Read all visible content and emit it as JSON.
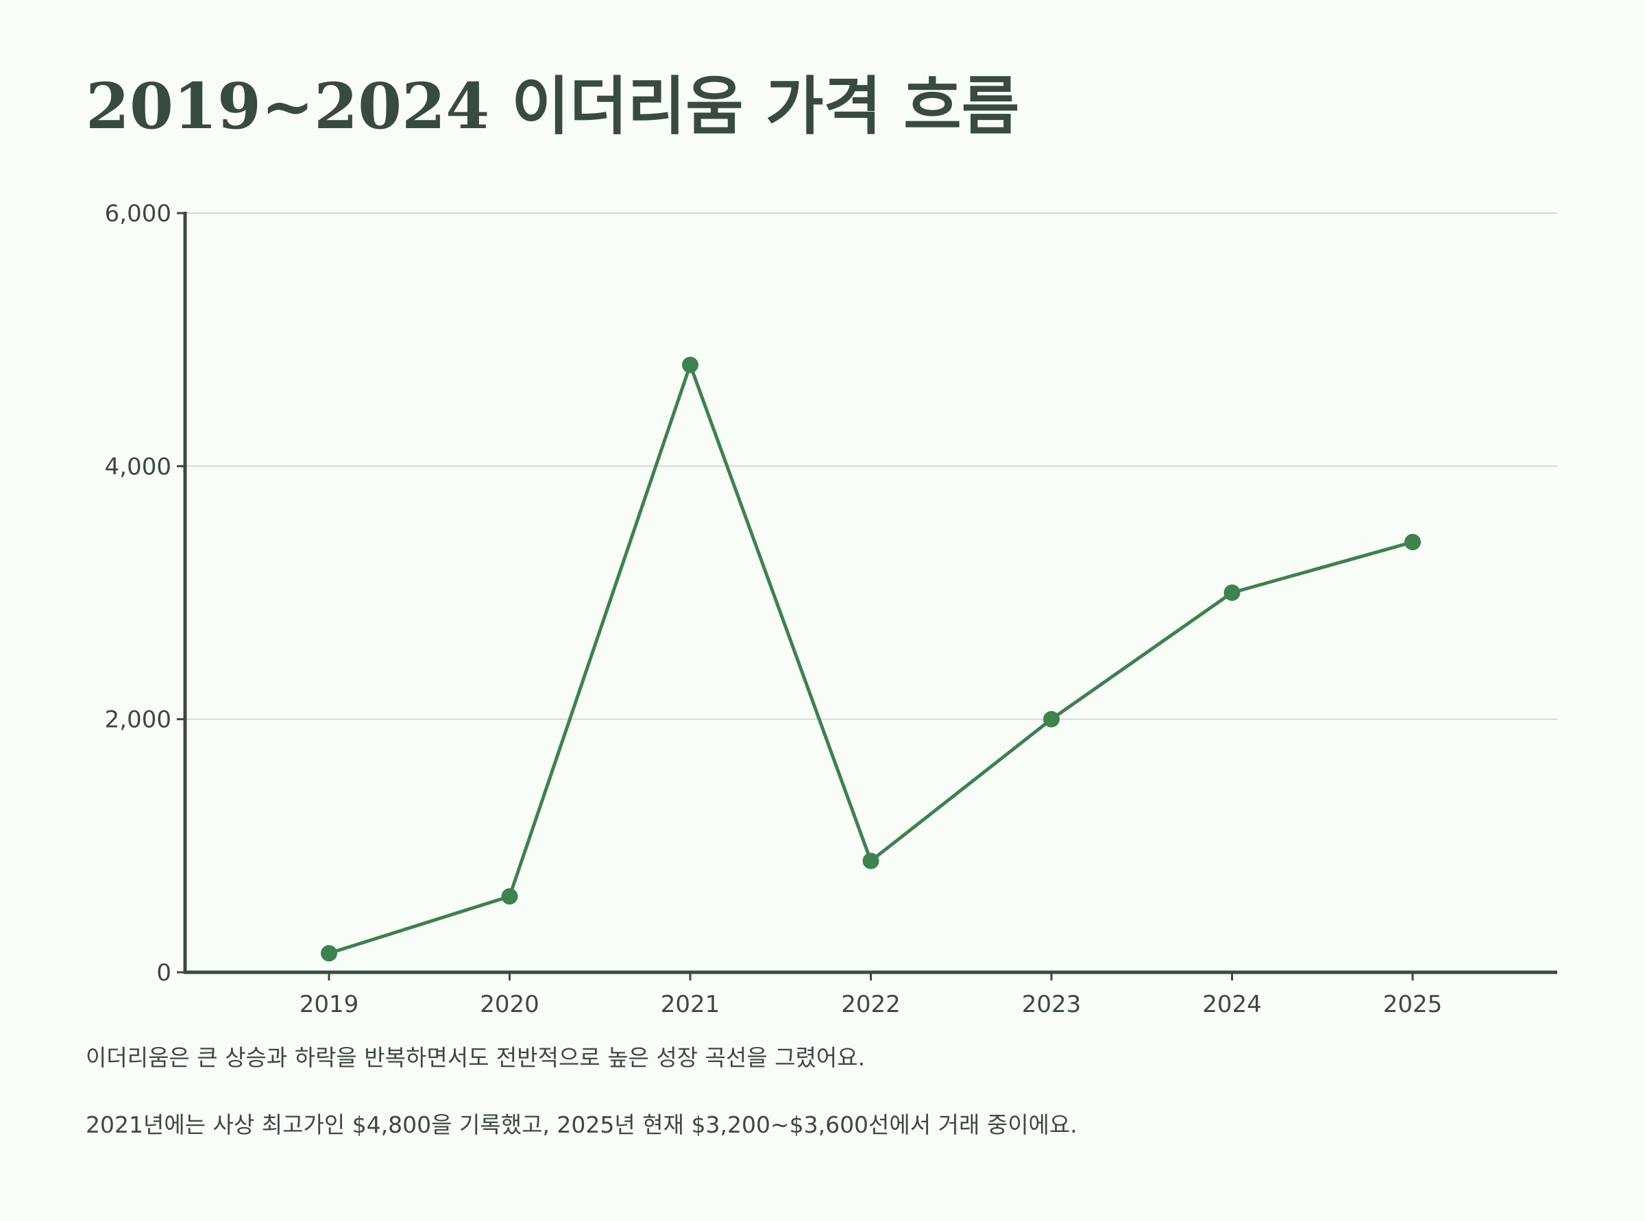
{
  "chart_data": {
    "type": "line",
    "title": "2019~2024 이더리움 가격 흐름",
    "xlabel": "",
    "ylabel": "",
    "categories": [
      "2019",
      "2020",
      "2021",
      "2022",
      "2023",
      "2024",
      "2025"
    ],
    "series": [
      {
        "values": [
          150,
          600,
          4800,
          880,
          2000,
          3000,
          3400
        ],
        "color": "#3f8150"
      }
    ],
    "yticks": [
      0,
      2000,
      4000,
      6000
    ],
    "ytick_labels": [
      "0",
      "2,000",
      "4,000",
      "6,000"
    ],
    "ylim": [
      0,
      6000
    ],
    "grid": true,
    "legend": "none"
  },
  "notes": [
    "이더리움은 큰 상승과 하락을 반복하면서도 전반적으로 높은 성장 곡선을 그렸어요.",
    "2021년에는 사상 최고가인 $4,800을 기록했고, 2025년 현재 $3,200~$3,600선에서 거래 중이에요."
  ],
  "colors": {
    "background": "#f9fdf8",
    "text": "#394a3f",
    "axis": "#394a3f",
    "grid": "#d6dad6",
    "line": "#3f8150"
  }
}
